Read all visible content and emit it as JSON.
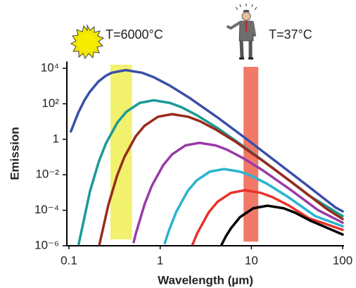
{
  "chart_data": {
    "type": "line",
    "xscale": "log",
    "yscale": "log",
    "x_label": "Wavelength (µm)",
    "y_label": "Emission",
    "xlim": [
      0.1,
      100
    ],
    "ylim": [
      1e-06,
      20000
    ],
    "xticks": [
      0.1,
      1,
      10,
      100
    ],
    "yticks": [
      {
        "value": 10000,
        "label": "10⁴"
      },
      {
        "value": 100,
        "label": "10²"
      },
      1,
      {
        "value": 0.01,
        "label": "10⁻²"
      },
      {
        "value": 0.0001,
        "label": "10⁻⁴"
      },
      {
        "value": 1e-06,
        "label": "10⁻⁶"
      }
    ],
    "annotations": [
      "T=6000°C",
      "T=37°C"
    ],
    "bands": [
      {
        "color": "#eeee55",
        "x": [
          0.285,
          0.49
        ],
        "y": [
          2.3e-06,
          16000
        ]
      },
      {
        "color": "#f0624e",
        "x": [
          8.2,
          11.9
        ],
        "y": [
          1.7e-06,
          12000
        ]
      }
    ],
    "series": [
      {
        "color": "#3a4fa8",
        "x": [
          0.105,
          0.126,
          0.147,
          0.168,
          0.21,
          0.252,
          0.294,
          0.42,
          0.63,
          0.84,
          1.26,
          2.1,
          4.2,
          8.4,
          21,
          42,
          84,
          100
        ],
        "values": [
          2.75,
          30,
          148,
          447,
          1778,
          3715,
          5623,
          7943,
          5623,
          3236,
          1096,
          214,
          17.8,
          1.26,
          0.0347,
          0.00224,
          0.000141,
          8.7e-05
        ]
      },
      {
        "color": "#1a9a96",
        "x": [
          0.128,
          0.17,
          0.2125,
          0.255,
          0.34,
          0.425,
          0.595,
          0.85,
          1.275,
          1.7,
          2.55,
          4.25,
          8.5,
          17,
          42.5,
          100
        ],
        "values": [
          1.26e-06,
          0.00117,
          0.055,
          0.6,
          8.9,
          35,
          112,
          158,
          112,
          65,
          22,
          4.3,
          0.35,
          0.025,
          0.00069,
          4.7e-05
        ]
      },
      {
        "color": "#9a2a1a",
        "x": [
          0.216,
          0.27,
          0.3375,
          0.405,
          0.54,
          0.675,
          0.945,
          1.35,
          2.025,
          2.7,
          4.05,
          6.75,
          13.5,
          27,
          67.5,
          100
        ],
        "values": [
          1.2e-06,
          0.000195,
          0.0091,
          0.1,
          1.48,
          5.8,
          18.6,
          26,
          18.6,
          10.7,
          3.6,
          0.71,
          0.058,
          0.0042,
          0.000115,
          3.2e-05
        ]
      },
      {
        "color": "#9a3aa8",
        "x": [
          0.513,
          0.54,
          0.675,
          0.81,
          1.08,
          1.35,
          1.89,
          2.7,
          4.05,
          5.4,
          8.1,
          13.5,
          27,
          54,
          100
        ],
        "values": [
          1.6e-06,
          4.7e-06,
          0.00022,
          0.0024,
          0.035,
          0.14,
          0.45,
          0.63,
          0.45,
          0.26,
          0.087,
          0.017,
          0.0014,
          0.0001,
          2e-05
        ]
      },
      {
        "color": "#28b4d0",
        "x": [
          1.125,
          1.25,
          1.5,
          2,
          2.5,
          3.5,
          5,
          7.5,
          10,
          15,
          25,
          50,
          100
        ],
        "values": [
          1.4e-06,
          7.4e-06,
          8.1e-05,
          0.0012,
          0.0047,
          0.015,
          0.021,
          0.015,
          0.0087,
          0.003,
          0.00058,
          4.7e-05,
          1.26e-05
        ]
      },
      {
        "color": "#e8322a",
        "x": [
          2.25,
          2.55,
          3.4,
          4.25,
          5.95,
          8.5,
          12.75,
          17,
          25.5,
          42.5,
          100
        ],
        "values": [
          1.07e-06,
          5.1e-06,
          7.6e-05,
          0.0003,
          0.00095,
          0.00135,
          0.00095,
          0.00055,
          0.00019,
          3.6e-05,
          7.9e-06
        ]
      },
      {
        "color": "#000000",
        "x": [
          4.65,
          5.25,
          6,
          7.5,
          10.5,
          15,
          22.5,
          30,
          45,
          100
        ],
        "values": [
          1e-06,
          3.4e-06,
          1e-05,
          4.1e-05,
          0.00013,
          0.00018,
          0.00013,
          7.4e-05,
          2.5e-05,
          4.3e-06
        ]
      }
    ]
  }
}
